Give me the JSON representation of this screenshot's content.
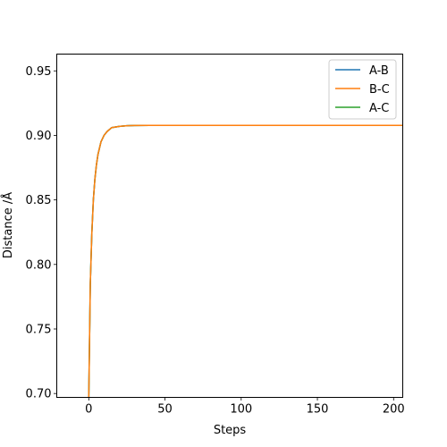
{
  "chart_data": {
    "type": "line",
    "xlabel": "Steps",
    "ylabel": "Distance /Å",
    "xlim": [
      -21,
      206
    ],
    "ylim": [
      0.697,
      0.963
    ],
    "xticks": [
      0,
      50,
      100,
      150,
      200
    ],
    "yticks": [
      0.7,
      0.75,
      0.8,
      0.85,
      0.9,
      0.95
    ],
    "xtick_labels": [
      "0",
      "50",
      "100",
      "150",
      "200"
    ],
    "ytick_labels": [
      "0.70",
      "0.75",
      "0.80",
      "0.85",
      "0.90",
      "0.95"
    ],
    "grid": false,
    "legend_position": "top-right",
    "x": [
      0,
      1,
      2,
      3,
      4,
      5,
      6,
      8,
      10,
      12,
      15,
      20,
      25,
      30,
      40,
      50,
      60,
      80,
      100,
      150,
      206
    ],
    "series": [
      {
        "name": "A-B",
        "color": "#1f77b4",
        "values": [
          0.697,
          0.785,
          0.824,
          0.85,
          0.866,
          0.877,
          0.885,
          0.895,
          0.9,
          0.903,
          0.906,
          0.907,
          0.9075,
          0.9077,
          0.9078,
          0.9078,
          0.9078,
          0.9078,
          0.9078,
          0.9078,
          0.9078
        ]
      },
      {
        "name": "B-C",
        "color": "#ff7f0e",
        "values": [
          0.697,
          0.785,
          0.824,
          0.85,
          0.866,
          0.877,
          0.885,
          0.895,
          0.9,
          0.903,
          0.906,
          0.907,
          0.9075,
          0.9077,
          0.9078,
          0.9078,
          0.9078,
          0.9078,
          0.9078,
          0.9078,
          0.9078
        ]
      },
      {
        "name": "A-C",
        "color": "#2ca02c",
        "values": [
          0.697,
          0.785,
          0.824,
          0.85,
          0.866,
          0.877,
          0.885,
          0.895,
          0.9,
          0.903,
          0.906,
          0.907,
          0.9075,
          0.9077,
          0.9078,
          0.9078,
          0.9078,
          0.9078,
          0.9078,
          0.9078,
          0.9078
        ]
      }
    ],
    "draw_order": [
      0,
      2,
      1
    ]
  }
}
